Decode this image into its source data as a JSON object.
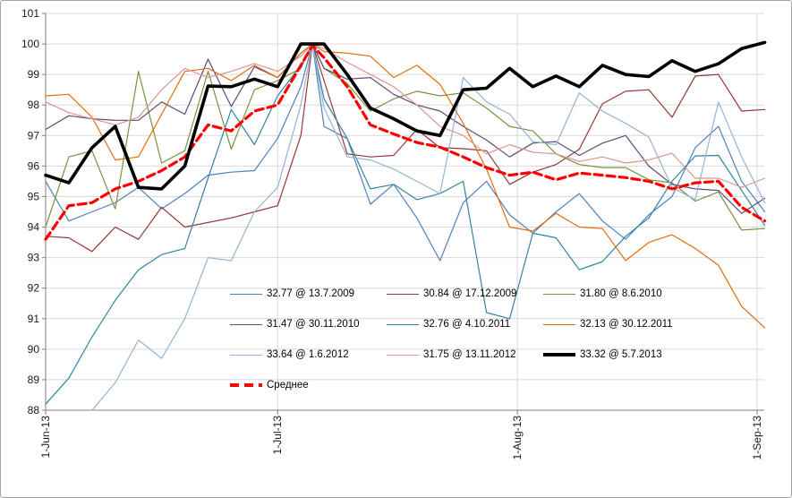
{
  "chart_data": {
    "type": "line",
    "title": "",
    "xlabel": "",
    "ylabel": "",
    "grid": true,
    "legend_position": "inside-bottom-center",
    "y_axis": {
      "min": 88,
      "max": 101,
      "step": 1,
      "tick_labels": [
        "88",
        "89",
        "90",
        "91",
        "92",
        "93",
        "94",
        "95",
        "96",
        "97",
        "98",
        "99",
        "100",
        "101"
      ]
    },
    "x_axis": {
      "day_min": 0,
      "day_max": 93,
      "tick_days": [
        0,
        30,
        61,
        92
      ],
      "tick_labels": [
        "1-Jun-13",
        "1-Jul-13",
        "1-Aug-13",
        "1-Sep-13"
      ]
    },
    "x_days": [
      0,
      3,
      6,
      9,
      12,
      15,
      18,
      21,
      24,
      27,
      30,
      33,
      34.5,
      36,
      39,
      42,
      45,
      48,
      51,
      54,
      57,
      60,
      63,
      66,
      69,
      72,
      75,
      78,
      81,
      84,
      87,
      90,
      93
    ],
    "series": [
      {
        "name": "32.77 @ 13.7.2009",
        "color": "#4F81BD",
        "width": 1.2,
        "dash": null,
        "values": [
          95.5,
          94.2,
          94.5,
          94.8,
          95.3,
          94.6,
          95.1,
          95.7,
          95.8,
          95.85,
          96.9,
          98.6,
          100.0,
          97.3,
          96.9,
          94.75,
          95.4,
          94.3,
          92.9,
          94.8,
          95.5,
          94.4,
          93.8,
          94.5,
          95.1,
          94.2,
          93.6,
          94.4,
          95.0,
          96.6,
          97.3,
          95.5,
          94.5
        ]
      },
      {
        "name": "30.84 @ 17.12.2009",
        "color": "#953735",
        "width": 1.2,
        "dash": null,
        "values": [
          93.7,
          93.65,
          93.2,
          94.0,
          93.6,
          94.65,
          94.0,
          94.15,
          94.3,
          94.5,
          94.7,
          97.0,
          100.0,
          98.8,
          96.4,
          96.3,
          96.35,
          97.2,
          96.6,
          96.57,
          96.5,
          95.4,
          95.8,
          96.05,
          96.55,
          98.04,
          98.45,
          98.5,
          97.6,
          98.95,
          99.0,
          97.8,
          97.85
        ]
      },
      {
        "name": "31.80 @ 8.6.2010",
        "color": "#77933C",
        "width": 1.2,
        "dash": null,
        "values": [
          94.0,
          96.3,
          96.5,
          94.6,
          99.1,
          96.1,
          96.5,
          99.1,
          96.55,
          98.5,
          98.8,
          99.2,
          100.0,
          99.2,
          98.7,
          97.8,
          98.2,
          98.45,
          98.3,
          98.4,
          97.9,
          97.3,
          97.15,
          96.4,
          96.05,
          95.95,
          95.95,
          95.55,
          95.45,
          94.85,
          95.15,
          93.9,
          93.95
        ]
      },
      {
        "name": "31.47 @ 30.11.2010",
        "color": "#604A7B",
        "width": 1.2,
        "dash": null,
        "values": [
          97.2,
          97.65,
          97.55,
          97.5,
          97.5,
          98.1,
          97.7,
          99.5,
          97.95,
          99.25,
          98.9,
          99.7,
          100.0,
          99.2,
          98.85,
          98.9,
          98.35,
          98.0,
          97.8,
          97.3,
          96.85,
          96.3,
          96.75,
          96.8,
          96.35,
          96.75,
          97.0,
          96.0,
          95.4,
          95.25,
          95.2,
          94.45,
          94.95
        ]
      },
      {
        "name": "32.76 @ 4.10.2011",
        "color": "#31859C",
        "width": 1.2,
        "dash": null,
        "values": [
          88.2,
          89.05,
          90.4,
          91.6,
          92.6,
          93.1,
          93.3,
          95.6,
          97.85,
          96.7,
          98.3,
          99.3,
          100.0,
          98.2,
          96.9,
          95.25,
          95.4,
          94.9,
          95.1,
          95.5,
          91.2,
          91.0,
          93.8,
          93.65,
          92.6,
          92.87,
          93.7,
          94.3,
          95.5,
          96.33,
          96.35,
          95.2,
          94.05
        ]
      },
      {
        "name": "32.13 @ 30.12.2011",
        "color": "#E36C0A",
        "width": 1.2,
        "dash": null,
        "values": [
          98.3,
          98.35,
          97.6,
          96.2,
          96.3,
          97.7,
          99.1,
          99.2,
          98.8,
          99.3,
          98.9,
          99.7,
          100.0,
          99.75,
          99.7,
          99.6,
          98.9,
          99.3,
          98.68,
          97.4,
          95.9,
          94.0,
          93.87,
          94.45,
          94.0,
          93.95,
          92.9,
          93.5,
          93.75,
          93.3,
          92.75,
          91.4,
          90.7
        ]
      },
      {
        "name": "33.64 @ 1.6.2012",
        "color": "#95B3D7",
        "width": 1.2,
        "dash": null,
        "values": [
          null,
          null,
          88.0,
          88.9,
          90.3,
          89.7,
          91.0,
          93.0,
          92.9,
          94.5,
          95.3,
          98.0,
          100.0,
          97.9,
          96.3,
          96.2,
          95.9,
          95.5,
          95.1,
          98.9,
          98.1,
          97.7,
          96.8,
          96.7,
          98.4,
          97.8,
          97.4,
          96.95,
          95.3,
          94.9,
          98.1,
          96.3,
          94.8
        ]
      },
      {
        "name": "31.75 @ 13.11.2012",
        "color": "#D99694",
        "width": 1.2,
        "dash": null,
        "values": [
          98.1,
          97.75,
          97.55,
          97.35,
          97.6,
          98.5,
          99.2,
          98.9,
          99.1,
          99.36,
          99.1,
          99.6,
          100.0,
          99.85,
          99.4,
          99.0,
          98.6,
          98.0,
          97.3,
          97.0,
          96.4,
          96.7,
          96.45,
          96.4,
          96.15,
          96.3,
          96.1,
          96.2,
          96.42,
          95.6,
          95.6,
          95.3,
          95.6
        ]
      },
      {
        "name": "33.32 @ 5.7.2013",
        "color": "#000000",
        "width": 3.6,
        "dash": null,
        "values": [
          95.7,
          95.45,
          96.6,
          97.3,
          95.3,
          95.25,
          96.0,
          98.62,
          98.6,
          98.85,
          98.6,
          100.0,
          100.0,
          100.0,
          99.0,
          97.9,
          97.55,
          97.15,
          97.0,
          98.5,
          98.55,
          99.2,
          98.6,
          98.95,
          98.6,
          99.3,
          99.0,
          98.93,
          99.45,
          99.1,
          99.35,
          99.85,
          100.05
        ]
      },
      {
        "name": "Среднее",
        "color": "#FF0000",
        "width": 3.2,
        "dash": "9 5",
        "values": [
          93.6,
          94.7,
          94.8,
          95.25,
          95.5,
          95.85,
          96.3,
          97.35,
          97.15,
          97.8,
          98.0,
          99.3,
          99.95,
          99.55,
          98.6,
          97.35,
          97.05,
          96.77,
          96.62,
          96.3,
          95.95,
          95.7,
          95.8,
          95.55,
          95.77,
          95.7,
          95.62,
          95.5,
          95.25,
          95.45,
          95.5,
          94.65,
          94.2
        ]
      }
    ],
    "legend_rows": [
      [
        0,
        1,
        2
      ],
      [
        3,
        4,
        5
      ],
      [
        6,
        7,
        8
      ],
      [
        9
      ]
    ]
  },
  "style_colors": {
    "gridline": "#D9D9D9",
    "axis": "#808080",
    "background": "#FFFFFF",
    "frame_border": "#A3A3A3"
  }
}
